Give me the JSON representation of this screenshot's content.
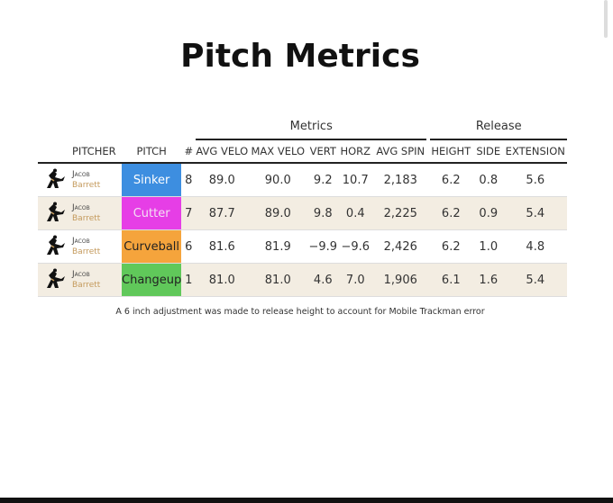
{
  "title": "Pitch Metrics",
  "table": {
    "groups": [
      "Metrics",
      "Release"
    ],
    "columns": [
      "PITCHER",
      "PITCH",
      "#",
      "AVG VELO",
      "MAX VELO",
      "VERT",
      "HORZ",
      "AVG SPIN",
      "HEIGHT",
      "SIDE",
      "EXTENSION"
    ],
    "rows": [
      {
        "first": "Jacob",
        "last": "Barrett",
        "pitch": "Sinker",
        "pitch_color": "#3d8ee0",
        "pitch_text_color": "#ffffff",
        "cells": [
          "8",
          "89.0",
          "90.0",
          "9.2",
          "10.7",
          "2,183",
          "6.2",
          "0.8",
          "5.6"
        ]
      },
      {
        "first": "Jacob",
        "last": "Barrett",
        "pitch": "Cutter",
        "pitch_color": "#e63ee6",
        "pitch_text_color": "#f4e0f4",
        "cells": [
          "7",
          "87.7",
          "89.0",
          "9.8",
          "0.4",
          "2,225",
          "6.2",
          "0.9",
          "5.4"
        ]
      },
      {
        "first": "Jacob",
        "last": "Barrett",
        "pitch": "Curveball",
        "pitch_color": "#f5a43c",
        "pitch_text_color": "#222222",
        "cells": [
          "6",
          "81.6",
          "81.9",
          "−9.9",
          "−9.6",
          "2,426",
          "6.2",
          "1.0",
          "4.8"
        ]
      },
      {
        "first": "Jacob",
        "last": "Barrett",
        "pitch": "Changeup",
        "pitch_color": "#60c85a",
        "pitch_text_color": "#222222",
        "cells": [
          "1",
          "81.0",
          "81.0",
          "4.6",
          "7.0",
          "1,906",
          "6.1",
          "1.6",
          "5.4"
        ]
      }
    ]
  },
  "footnote": "A 6 inch adjustment was made to release height to account for Mobile Trackman error"
}
